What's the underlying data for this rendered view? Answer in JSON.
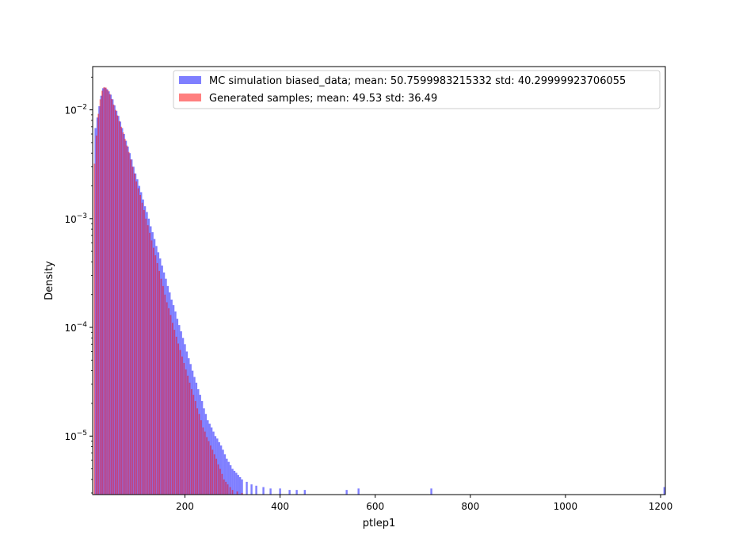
{
  "chart_data": {
    "type": "bar",
    "title": "",
    "xlabel": "ptlep1",
    "ylabel": "Density",
    "xlim": [
      6,
      1210
    ],
    "ylim": [
      2.9e-06,
      0.025
    ],
    "yscale": "log",
    "grid": false,
    "legend_placement": "top-right",
    "x_ticks": [
      {
        "value": 200,
        "label": "200"
      },
      {
        "value": 400,
        "label": "400"
      },
      {
        "value": 600,
        "label": "600"
      },
      {
        "value": 800,
        "label": "800"
      },
      {
        "value": 1000,
        "label": "1000"
      },
      {
        "value": 1200,
        "label": "1200"
      }
    ],
    "y_ticks": [
      {
        "value": 1e-05,
        "base": "10",
        "exp": "−5"
      },
      {
        "value": 0.0001,
        "base": "10",
        "exp": "−4"
      },
      {
        "value": 0.001,
        "base": "10",
        "exp": "−3"
      },
      {
        "value": 0.01,
        "base": "10",
        "exp": "−2"
      }
    ],
    "series": [
      {
        "name": "MC simulation biased_data; mean: 50.7599983215332 std: 40.29999923706055",
        "color": "#0000ff",
        "opacity": 0.5,
        "bin_width": 4,
        "points": [
          [
            12,
            0.0068
          ],
          [
            16,
            0.0085
          ],
          [
            20,
            0.0108
          ],
          [
            24,
            0.0135
          ],
          [
            28,
            0.0158
          ],
          [
            32,
            0.016
          ],
          [
            36,
            0.0155
          ],
          [
            40,
            0.0148
          ],
          [
            44,
            0.0138
          ],
          [
            48,
            0.0125
          ],
          [
            52,
            0.011
          ],
          [
            56,
            0.0098
          ],
          [
            60,
            0.0088
          ],
          [
            64,
            0.0078
          ],
          [
            68,
            0.0068
          ],
          [
            72,
            0.006
          ],
          [
            76,
            0.0052
          ],
          [
            80,
            0.0046
          ],
          [
            84,
            0.004
          ],
          [
            88,
            0.0035
          ],
          [
            92,
            0.003
          ],
          [
            96,
            0.0026
          ],
          [
            100,
            0.0023
          ],
          [
            104,
            0.002
          ],
          [
            108,
            0.00175
          ],
          [
            112,
            0.0015
          ],
          [
            116,
            0.0013
          ],
          [
            120,
            0.00115
          ],
          [
            124,
            0.001
          ],
          [
            128,
            0.00085
          ],
          [
            132,
            0.00075
          ],
          [
            136,
            0.00065
          ],
          [
            140,
            0.00056
          ],
          [
            144,
            0.00049
          ],
          [
            148,
            0.00043
          ],
          [
            152,
            0.00037
          ],
          [
            156,
            0.00032
          ],
          [
            160,
            0.00028
          ],
          [
            164,
            0.00024
          ],
          [
            168,
            0.00021
          ],
          [
            172,
            0.00018
          ],
          [
            176,
            0.00016
          ],
          [
            180,
            0.00014
          ],
          [
            184,
            0.00012
          ],
          [
            188,
            0.000105
          ],
          [
            192,
            9.2e-05
          ],
          [
            196,
            8e-05
          ],
          [
            200,
            7e-05
          ],
          [
            204,
            6e-05
          ],
          [
            208,
            5.2e-05
          ],
          [
            212,
            4.6e-05
          ],
          [
            216,
            4e-05
          ],
          [
            220,
            3.5e-05
          ],
          [
            224,
            3.1e-05
          ],
          [
            228,
            2.7e-05
          ],
          [
            232,
            2.4e-05
          ],
          [
            236,
            2.1e-05
          ],
          [
            240,
            1.8e-05
          ],
          [
            244,
            1.6e-05
          ],
          [
            248,
            1.4e-05
          ],
          [
            252,
            1.3e-05
          ],
          [
            256,
            1.2e-05
          ],
          [
            260,
            1.1e-05
          ],
          [
            264,
            1e-05
          ],
          [
            268,
            9.5e-06
          ],
          [
            272,
            8.8e-06
          ],
          [
            276,
            8.2e-06
          ],
          [
            280,
            7.5e-06
          ],
          [
            284,
            6.8e-06
          ],
          [
            288,
            6.2e-06
          ],
          [
            292,
            5.8e-06
          ],
          [
            296,
            5.4e-06
          ],
          [
            300,
            5e-06
          ],
          [
            304,
            4.8e-06
          ],
          [
            308,
            4.6e-06
          ],
          [
            312,
            4.4e-06
          ],
          [
            316,
            4.2e-06
          ],
          [
            320,
            4e-06
          ],
          [
            330,
            3.8e-06
          ],
          [
            340,
            3.6e-06
          ],
          [
            350,
            3.5e-06
          ],
          [
            365,
            3.4e-06
          ],
          [
            380,
            3.3e-06
          ],
          [
            400,
            3.3e-06
          ],
          [
            420,
            3.2e-06
          ],
          [
            435,
            3.2e-06
          ],
          [
            452,
            3.2e-06
          ],
          [
            540,
            3.2e-06
          ],
          [
            565,
            3.3e-06
          ],
          [
            718,
            3.3e-06
          ],
          [
            1208,
            3.4e-06
          ]
        ]
      },
      {
        "name": "Generated samples; mean: 49.53 std: 36.49",
        "color": "#ff0000",
        "opacity": 0.5,
        "bin_width": 3,
        "points": [
          [
            10,
            0.0032
          ],
          [
            14,
            0.0058
          ],
          [
            18,
            0.0092
          ],
          [
            22,
            0.0125
          ],
          [
            26,
            0.015
          ],
          [
            30,
            0.0162
          ],
          [
            34,
            0.016
          ],
          [
            38,
            0.0152
          ],
          [
            42,
            0.014
          ],
          [
            46,
            0.0126
          ],
          [
            50,
            0.0112
          ],
          [
            54,
            0.01
          ],
          [
            58,
            0.0089
          ],
          [
            62,
            0.0079
          ],
          [
            66,
            0.007
          ],
          [
            70,
            0.0062
          ],
          [
            74,
            0.0054
          ],
          [
            78,
            0.0047
          ],
          [
            82,
            0.0041
          ],
          [
            86,
            0.0035
          ],
          [
            90,
            0.003
          ],
          [
            94,
            0.0026
          ],
          [
            98,
            0.0022
          ],
          [
            102,
            0.0019
          ],
          [
            106,
            0.00165
          ],
          [
            110,
            0.0014
          ],
          [
            114,
            0.0012
          ],
          [
            118,
            0.001
          ],
          [
            122,
            0.00087
          ],
          [
            126,
            0.00074
          ],
          [
            130,
            0.00063
          ],
          [
            134,
            0.00054
          ],
          [
            138,
            0.00046
          ],
          [
            142,
            0.00039
          ],
          [
            146,
            0.00033
          ],
          [
            150,
            0.00028
          ],
          [
            154,
            0.00024
          ],
          [
            158,
            0.0002
          ],
          [
            162,
            0.00017
          ],
          [
            166,
            0.00015
          ],
          [
            170,
            0.00013
          ],
          [
            174,
            0.00011
          ],
          [
            178,
            9.5e-05
          ],
          [
            182,
            8.2e-05
          ],
          [
            186,
            7.1e-05
          ],
          [
            190,
            6.2e-05
          ],
          [
            194,
            5.4e-05
          ],
          [
            198,
            4.7e-05
          ],
          [
            202,
            4.1e-05
          ],
          [
            206,
            3.6e-05
          ],
          [
            210,
            3.1e-05
          ],
          [
            214,
            2.7e-05
          ],
          [
            218,
            2.4e-05
          ],
          [
            222,
            2.1e-05
          ],
          [
            226,
            1.8e-05
          ],
          [
            230,
            1.6e-05
          ],
          [
            234,
            1.4e-05
          ],
          [
            238,
            1.2e-05
          ],
          [
            242,
            1.1e-05
          ],
          [
            246,
            9.8e-06
          ],
          [
            250,
            9e-06
          ],
          [
            254,
            8.2e-06
          ],
          [
            258,
            7.5e-06
          ],
          [
            262,
            6.8e-06
          ],
          [
            266,
            6.2e-06
          ],
          [
            270,
            5.5e-06
          ],
          [
            274,
            5e-06
          ],
          [
            278,
            4.5e-06
          ],
          [
            282,
            4e-06
          ],
          [
            286,
            3.8e-06
          ],
          [
            290,
            3.6e-06
          ],
          [
            295,
            3.4e-06
          ],
          [
            300,
            3.2e-06
          ],
          [
            310,
            3.1e-06
          ],
          [
            320,
            3e-06
          ]
        ]
      }
    ]
  }
}
